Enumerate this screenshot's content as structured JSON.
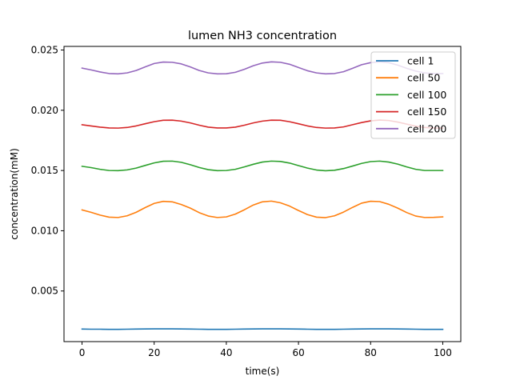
{
  "chart_data": {
    "type": "line",
    "title": "lumen NH3 concentration",
    "xlabel": "time(s)",
    "ylabel": "concentration(mM)",
    "xlim": [
      -5,
      105
    ],
    "ylim": [
      0.0008,
      0.0253
    ],
    "xticks": [
      0,
      20,
      40,
      60,
      80,
      100
    ],
    "xtick_labels": [
      "0",
      "20",
      "40",
      "60",
      "80",
      "100"
    ],
    "yticks": [
      0.005,
      0.01,
      0.015,
      0.02,
      0.025
    ],
    "ytick_labels": [
      "0.005",
      "0.010",
      "0.015",
      "0.020",
      "0.025"
    ],
    "grid": false,
    "legend_position": "top-right",
    "x": [
      0,
      2.5,
      5,
      7.5,
      10,
      12.5,
      15,
      17.5,
      20,
      22.5,
      25,
      27.5,
      30,
      32.5,
      35,
      37.5,
      40,
      42.5,
      45,
      47.5,
      50,
      52.5,
      55,
      57.5,
      60,
      62.5,
      65,
      67.5,
      70,
      72.5,
      75,
      77.5,
      80,
      82.5,
      85,
      87.5,
      90,
      92.5,
      95,
      97.5,
      100
    ],
    "series": [
      {
        "name": "cell 1",
        "color": "#1f77b4",
        "values": [
          0.00184,
          0.00183,
          0.00183,
          0.00182,
          0.00182,
          0.00183,
          0.00184,
          0.00185,
          0.00186,
          0.00186,
          0.00186,
          0.00185,
          0.00184,
          0.00183,
          0.00182,
          0.00182,
          0.00182,
          0.00183,
          0.00184,
          0.00185,
          0.00186,
          0.00186,
          0.00186,
          0.00185,
          0.00184,
          0.00183,
          0.00182,
          0.00182,
          0.00182,
          0.00183,
          0.00184,
          0.00185,
          0.00186,
          0.00186,
          0.00186,
          0.00185,
          0.00184,
          0.00183,
          0.00182,
          0.00182,
          0.00182
        ]
      },
      {
        "name": "cell 50",
        "color": "#ff7f0e",
        "values": [
          0.01173,
          0.01153,
          0.0113,
          0.01113,
          0.0111,
          0.01124,
          0.01153,
          0.01192,
          0.01227,
          0.01244,
          0.0124,
          0.01218,
          0.01188,
          0.0115,
          0.01122,
          0.0111,
          0.01115,
          0.01138,
          0.01174,
          0.01214,
          0.0124,
          0.01246,
          0.01232,
          0.01205,
          0.01168,
          0.01134,
          0.01113,
          0.01109,
          0.01124,
          0.01155,
          0.01194,
          0.01229,
          0.01245,
          0.01242,
          0.0122,
          0.01188,
          0.01151,
          0.01122,
          0.0111,
          0.01111,
          0.01115
        ]
      },
      {
        "name": "cell 100",
        "color": "#2ca02c",
        "values": [
          0.01535,
          0.01524,
          0.0151,
          0.015,
          0.01499,
          0.01505,
          0.0152,
          0.01542,
          0.01563,
          0.01577,
          0.01578,
          0.01568,
          0.01548,
          0.01525,
          0.01507,
          0.01499,
          0.015,
          0.0151,
          0.0153,
          0.01552,
          0.0157,
          0.01578,
          0.01575,
          0.01562,
          0.01541,
          0.0152,
          0.01504,
          0.01498,
          0.01502,
          0.01516,
          0.01537,
          0.01559,
          0.01574,
          0.01578,
          0.0157,
          0.01553,
          0.0153,
          0.0151,
          0.015,
          0.015,
          0.015
        ]
      },
      {
        "name": "cell 150",
        "color": "#d62728",
        "values": [
          0.0188,
          0.0187,
          0.0186,
          0.01853,
          0.01852,
          0.01857,
          0.0187,
          0.01888,
          0.01905,
          0.01917,
          0.01918,
          0.0191,
          0.01895,
          0.01876,
          0.0186,
          0.01853,
          0.01853,
          0.0186,
          0.01876,
          0.01895,
          0.0191,
          0.01918,
          0.01917,
          0.01905,
          0.01888,
          0.0187,
          0.01857,
          0.01852,
          0.01853,
          0.01862,
          0.0188,
          0.01898,
          0.01912,
          0.01919,
          0.01915,
          0.01902,
          0.01885,
          0.01868,
          0.01857,
          0.01853,
          0.01852
        ]
      },
      {
        "name": "cell 200",
        "color": "#9467bd",
        "values": [
          0.0235,
          0.02335,
          0.02318,
          0.02305,
          0.02302,
          0.0231,
          0.0233,
          0.0236,
          0.02388,
          0.024,
          0.02398,
          0.02385,
          0.0236,
          0.0233,
          0.0231,
          0.02302,
          0.02303,
          0.02315,
          0.0234,
          0.0237,
          0.02392,
          0.02402,
          0.02398,
          0.02382,
          0.02355,
          0.02328,
          0.0231,
          0.02302,
          0.02305,
          0.0232,
          0.02348,
          0.02378,
          0.02395,
          0.02402,
          0.02395,
          0.02375,
          0.02348,
          0.02325,
          0.0231,
          0.02305,
          0.02305
        ]
      }
    ]
  }
}
